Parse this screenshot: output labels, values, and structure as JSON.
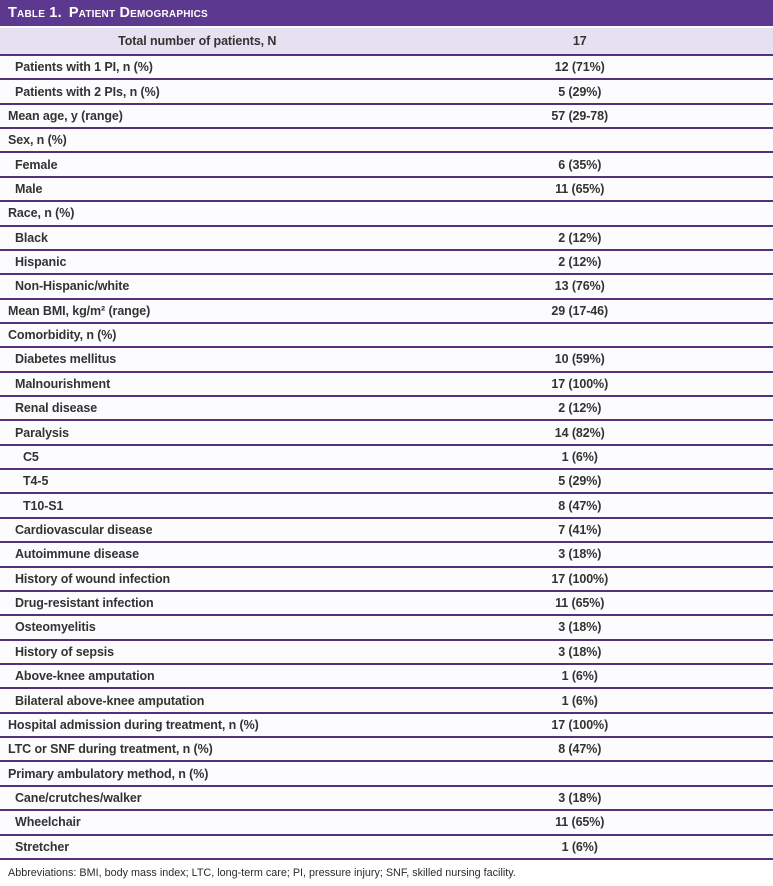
{
  "title_prefix": "Table 1.",
  "title_text": "Patient Demographics",
  "summary_row": {
    "label": "Total number of patients, N",
    "value": "17"
  },
  "rows": [
    {
      "label": "Patients with 1 PI, n (%)",
      "value": "12 (71%)",
      "indent": 1
    },
    {
      "label": "Patients with 2 PIs, n (%)",
      "value": "5 (29%)",
      "indent": 1
    },
    {
      "label": "Mean age, y (range)",
      "value": "57 (29-78)",
      "indent": 0
    },
    {
      "label": "Sex, n (%)",
      "value": "",
      "indent": 0
    },
    {
      "label": "Female",
      "value": "6 (35%)",
      "indent": 1
    },
    {
      "label": "Male",
      "value": "11 (65%)",
      "indent": 1
    },
    {
      "label": "Race, n (%)",
      "value": "",
      "indent": 0
    },
    {
      "label": "Black",
      "value": "2 (12%)",
      "indent": 1
    },
    {
      "label": "Hispanic",
      "value": "2 (12%)",
      "indent": 1
    },
    {
      "label": "Non-Hispanic/white",
      "value": "13 (76%)",
      "indent": 1
    },
    {
      "label": "Mean BMI, kg/m² (range)",
      "value": "29 (17-46)",
      "indent": 0
    },
    {
      "label": "Comorbidity, n (%)",
      "value": "",
      "indent": 0
    },
    {
      "label": "Diabetes mellitus",
      "value": "10 (59%)",
      "indent": 1
    },
    {
      "label": "Malnourishment",
      "value": "17 (100%)",
      "indent": 1
    },
    {
      "label": "Renal disease",
      "value": "2 (12%)",
      "indent": 1
    },
    {
      "label": "Paralysis",
      "value": "14 (82%)",
      "indent": 1
    },
    {
      "label": "C5",
      "value": "1 (6%)",
      "indent": 2
    },
    {
      "label": "T4-5",
      "value": "5 (29%)",
      "indent": 2
    },
    {
      "label": "T10-S1",
      "value": "8 (47%)",
      "indent": 2
    },
    {
      "label": "Cardiovascular disease",
      "value": "7 (41%)",
      "indent": 1
    },
    {
      "label": "Autoimmune disease",
      "value": "3 (18%)",
      "indent": 1
    },
    {
      "label": "History of wound infection",
      "value": "17 (100%)",
      "indent": 1
    },
    {
      "label": "Drug-resistant infection",
      "value": "11 (65%)",
      "indent": 1
    },
    {
      "label": "Osteomyelitis",
      "value": "3 (18%)",
      "indent": 1
    },
    {
      "label": "History of sepsis",
      "value": "3 (18%)",
      "indent": 1
    },
    {
      "label": "Above-knee amputation",
      "value": "1 (6%)",
      "indent": 1
    },
    {
      "label": "Bilateral above-knee amputation",
      "value": "1 (6%)",
      "indent": 1
    },
    {
      "label": "Hospital admission during treatment, n (%)",
      "value": "17 (100%)",
      "indent": 0
    },
    {
      "label": "LTC or SNF during treatment, n (%)",
      "value": "8 (47%)",
      "indent": 0
    },
    {
      "label": "Primary ambulatory method, n (%)",
      "value": "",
      "indent": 0
    },
    {
      "label": "Cane/crutches/walker",
      "value": "3 (18%)",
      "indent": 1
    },
    {
      "label": "Wheelchair",
      "value": "11 (65%)",
      "indent": 1
    },
    {
      "label": "Stretcher",
      "value": "1 (6%)",
      "indent": 1
    }
  ],
  "footnote": "Abbreviations: BMI, body mass index; LTC, long-term care; PI, pressure injury; SNF, skilled nursing facility.",
  "colors": {
    "header_bg": "#5d388f",
    "border": "#54307f",
    "highlight_row_bg": "#e6e1f0",
    "row_bg": "#fcfbfe",
    "header_text": "#ffffff",
    "text": "#333333",
    "footnote_text": "#2b2b2b"
  }
}
